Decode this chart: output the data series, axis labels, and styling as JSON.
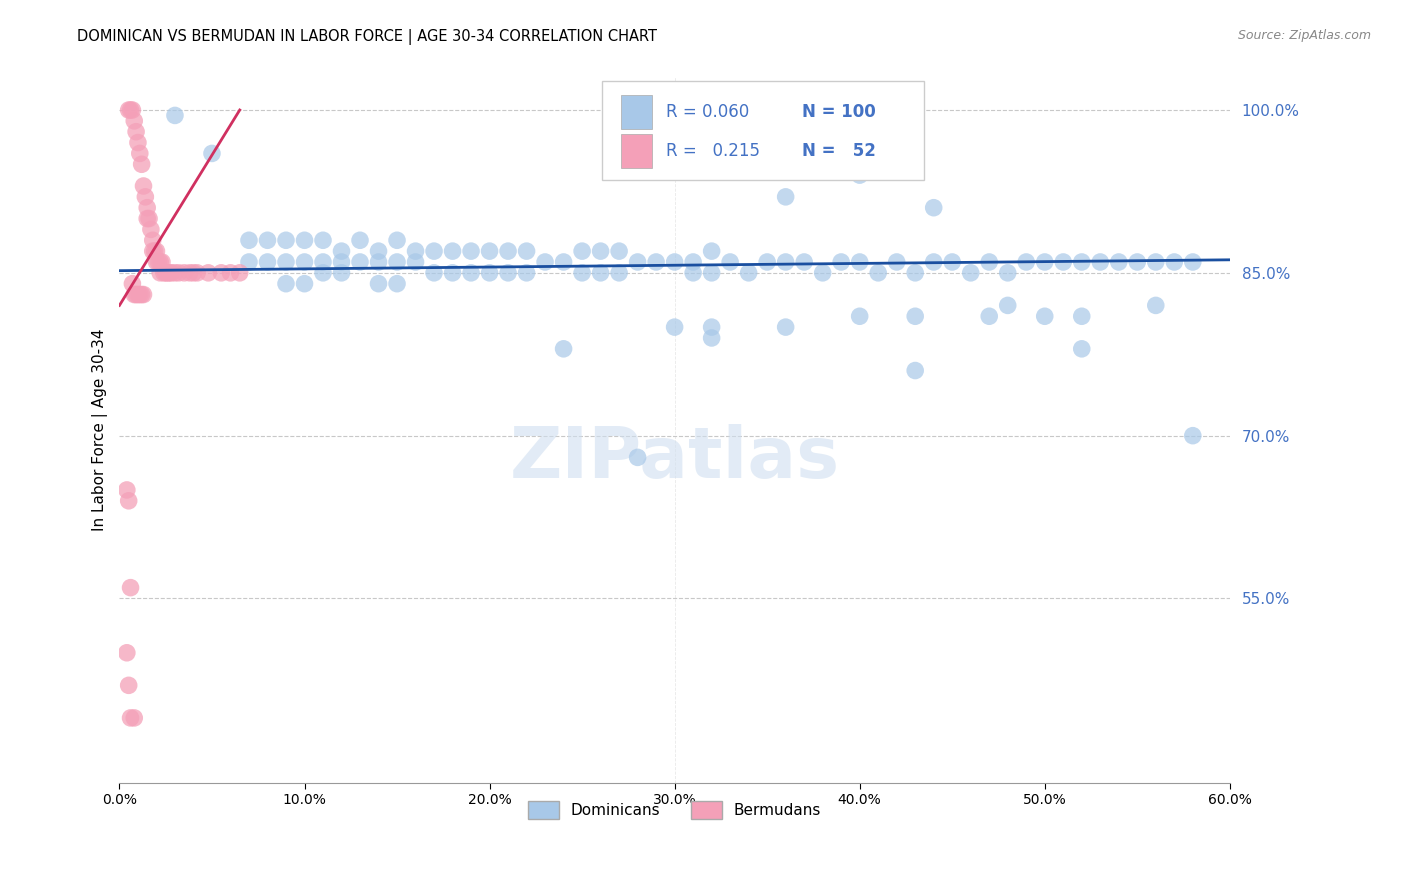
{
  "title": "DOMINICAN VS BERMUDAN IN LABOR FORCE | AGE 30-34 CORRELATION CHART",
  "source": "Source: ZipAtlas.com",
  "ylabel_left": "In Labor Force | Age 30-34",
  "xlim": [
    0.0,
    0.6
  ],
  "ylim": [
    0.38,
    1.03
  ],
  "xticks": [
    0.0,
    0.1,
    0.2,
    0.3,
    0.4,
    0.5,
    0.6
  ],
  "yticks_right": [
    0.55,
    0.7,
    0.85,
    1.0
  ],
  "legend_labels": [
    "Dominicans",
    "Bermudans"
  ],
  "legend_R_blue": "0.060",
  "legend_N_blue": "100",
  "legend_R_pink": "0.215",
  "legend_N_pink": "52",
  "blue_scatter_color": "#a8c8e8",
  "pink_scatter_color": "#f4a0b8",
  "blue_line_color": "#1a4fa0",
  "pink_line_color": "#d03060",
  "grid_color": "#c8c8c8",
  "right_axis_color": "#4472c4",
  "watermark_color": "#d0dff0",
  "dominican_x": [
    0.03,
    0.05,
    0.07,
    0.07,
    0.08,
    0.08,
    0.09,
    0.09,
    0.09,
    0.1,
    0.1,
    0.1,
    0.11,
    0.11,
    0.11,
    0.12,
    0.12,
    0.12,
    0.13,
    0.13,
    0.14,
    0.14,
    0.14,
    0.15,
    0.15,
    0.15,
    0.16,
    0.16,
    0.17,
    0.17,
    0.18,
    0.18,
    0.19,
    0.19,
    0.2,
    0.2,
    0.21,
    0.21,
    0.22,
    0.22,
    0.23,
    0.24,
    0.25,
    0.25,
    0.26,
    0.26,
    0.27,
    0.27,
    0.28,
    0.29,
    0.3,
    0.31,
    0.31,
    0.32,
    0.32,
    0.33,
    0.34,
    0.35,
    0.36,
    0.37,
    0.38,
    0.39,
    0.4,
    0.41,
    0.42,
    0.43,
    0.44,
    0.45,
    0.46,
    0.47,
    0.48,
    0.49,
    0.5,
    0.51,
    0.52,
    0.53,
    0.54,
    0.55,
    0.56,
    0.57,
    0.58,
    0.3,
    0.32,
    0.36,
    0.4,
    0.43,
    0.43,
    0.47,
    0.5,
    0.52,
    0.24,
    0.32,
    0.36,
    0.4,
    0.44,
    0.48,
    0.52,
    0.56,
    0.28,
    0.58
  ],
  "dominican_y": [
    0.995,
    0.96,
    0.88,
    0.86,
    0.88,
    0.86,
    0.88,
    0.86,
    0.84,
    0.88,
    0.86,
    0.84,
    0.88,
    0.86,
    0.85,
    0.87,
    0.86,
    0.85,
    0.88,
    0.86,
    0.87,
    0.86,
    0.84,
    0.88,
    0.86,
    0.84,
    0.87,
    0.86,
    0.87,
    0.85,
    0.87,
    0.85,
    0.87,
    0.85,
    0.87,
    0.85,
    0.87,
    0.85,
    0.87,
    0.85,
    0.86,
    0.86,
    0.87,
    0.85,
    0.87,
    0.85,
    0.87,
    0.85,
    0.86,
    0.86,
    0.86,
    0.86,
    0.85,
    0.87,
    0.85,
    0.86,
    0.85,
    0.86,
    0.86,
    0.86,
    0.85,
    0.86,
    0.86,
    0.85,
    0.86,
    0.85,
    0.86,
    0.86,
    0.85,
    0.86,
    0.85,
    0.86,
    0.86,
    0.86,
    0.86,
    0.86,
    0.86,
    0.86,
    0.86,
    0.86,
    0.86,
    0.8,
    0.8,
    0.8,
    0.81,
    0.81,
    0.76,
    0.81,
    0.81,
    0.81,
    0.78,
    0.79,
    0.92,
    0.94,
    0.91,
    0.82,
    0.78,
    0.82,
    0.68,
    0.7
  ],
  "bermudan_x": [
    0.005,
    0.006,
    0.007,
    0.008,
    0.009,
    0.01,
    0.011,
    0.012,
    0.013,
    0.014,
    0.015,
    0.015,
    0.016,
    0.017,
    0.018,
    0.018,
    0.019,
    0.02,
    0.02,
    0.021,
    0.022,
    0.022,
    0.023,
    0.024,
    0.025,
    0.026,
    0.027,
    0.028,
    0.03,
    0.032,
    0.035,
    0.038,
    0.04,
    0.042,
    0.048,
    0.055,
    0.06,
    0.065,
    0.004,
    0.005,
    0.006,
    0.007,
    0.008,
    0.009,
    0.01,
    0.011,
    0.012,
    0.013,
    0.004,
    0.005,
    0.006,
    0.008
  ],
  "bermudan_y": [
    1.0,
    1.0,
    1.0,
    0.99,
    0.98,
    0.97,
    0.96,
    0.95,
    0.93,
    0.92,
    0.91,
    0.9,
    0.9,
    0.89,
    0.88,
    0.87,
    0.87,
    0.87,
    0.86,
    0.86,
    0.86,
    0.85,
    0.86,
    0.85,
    0.85,
    0.85,
    0.85,
    0.85,
    0.85,
    0.85,
    0.85,
    0.85,
    0.85,
    0.85,
    0.85,
    0.85,
    0.85,
    0.85,
    0.65,
    0.64,
    0.56,
    0.84,
    0.83,
    0.83,
    0.83,
    0.83,
    0.83,
    0.83,
    0.5,
    0.47,
    0.44,
    0.44
  ]
}
